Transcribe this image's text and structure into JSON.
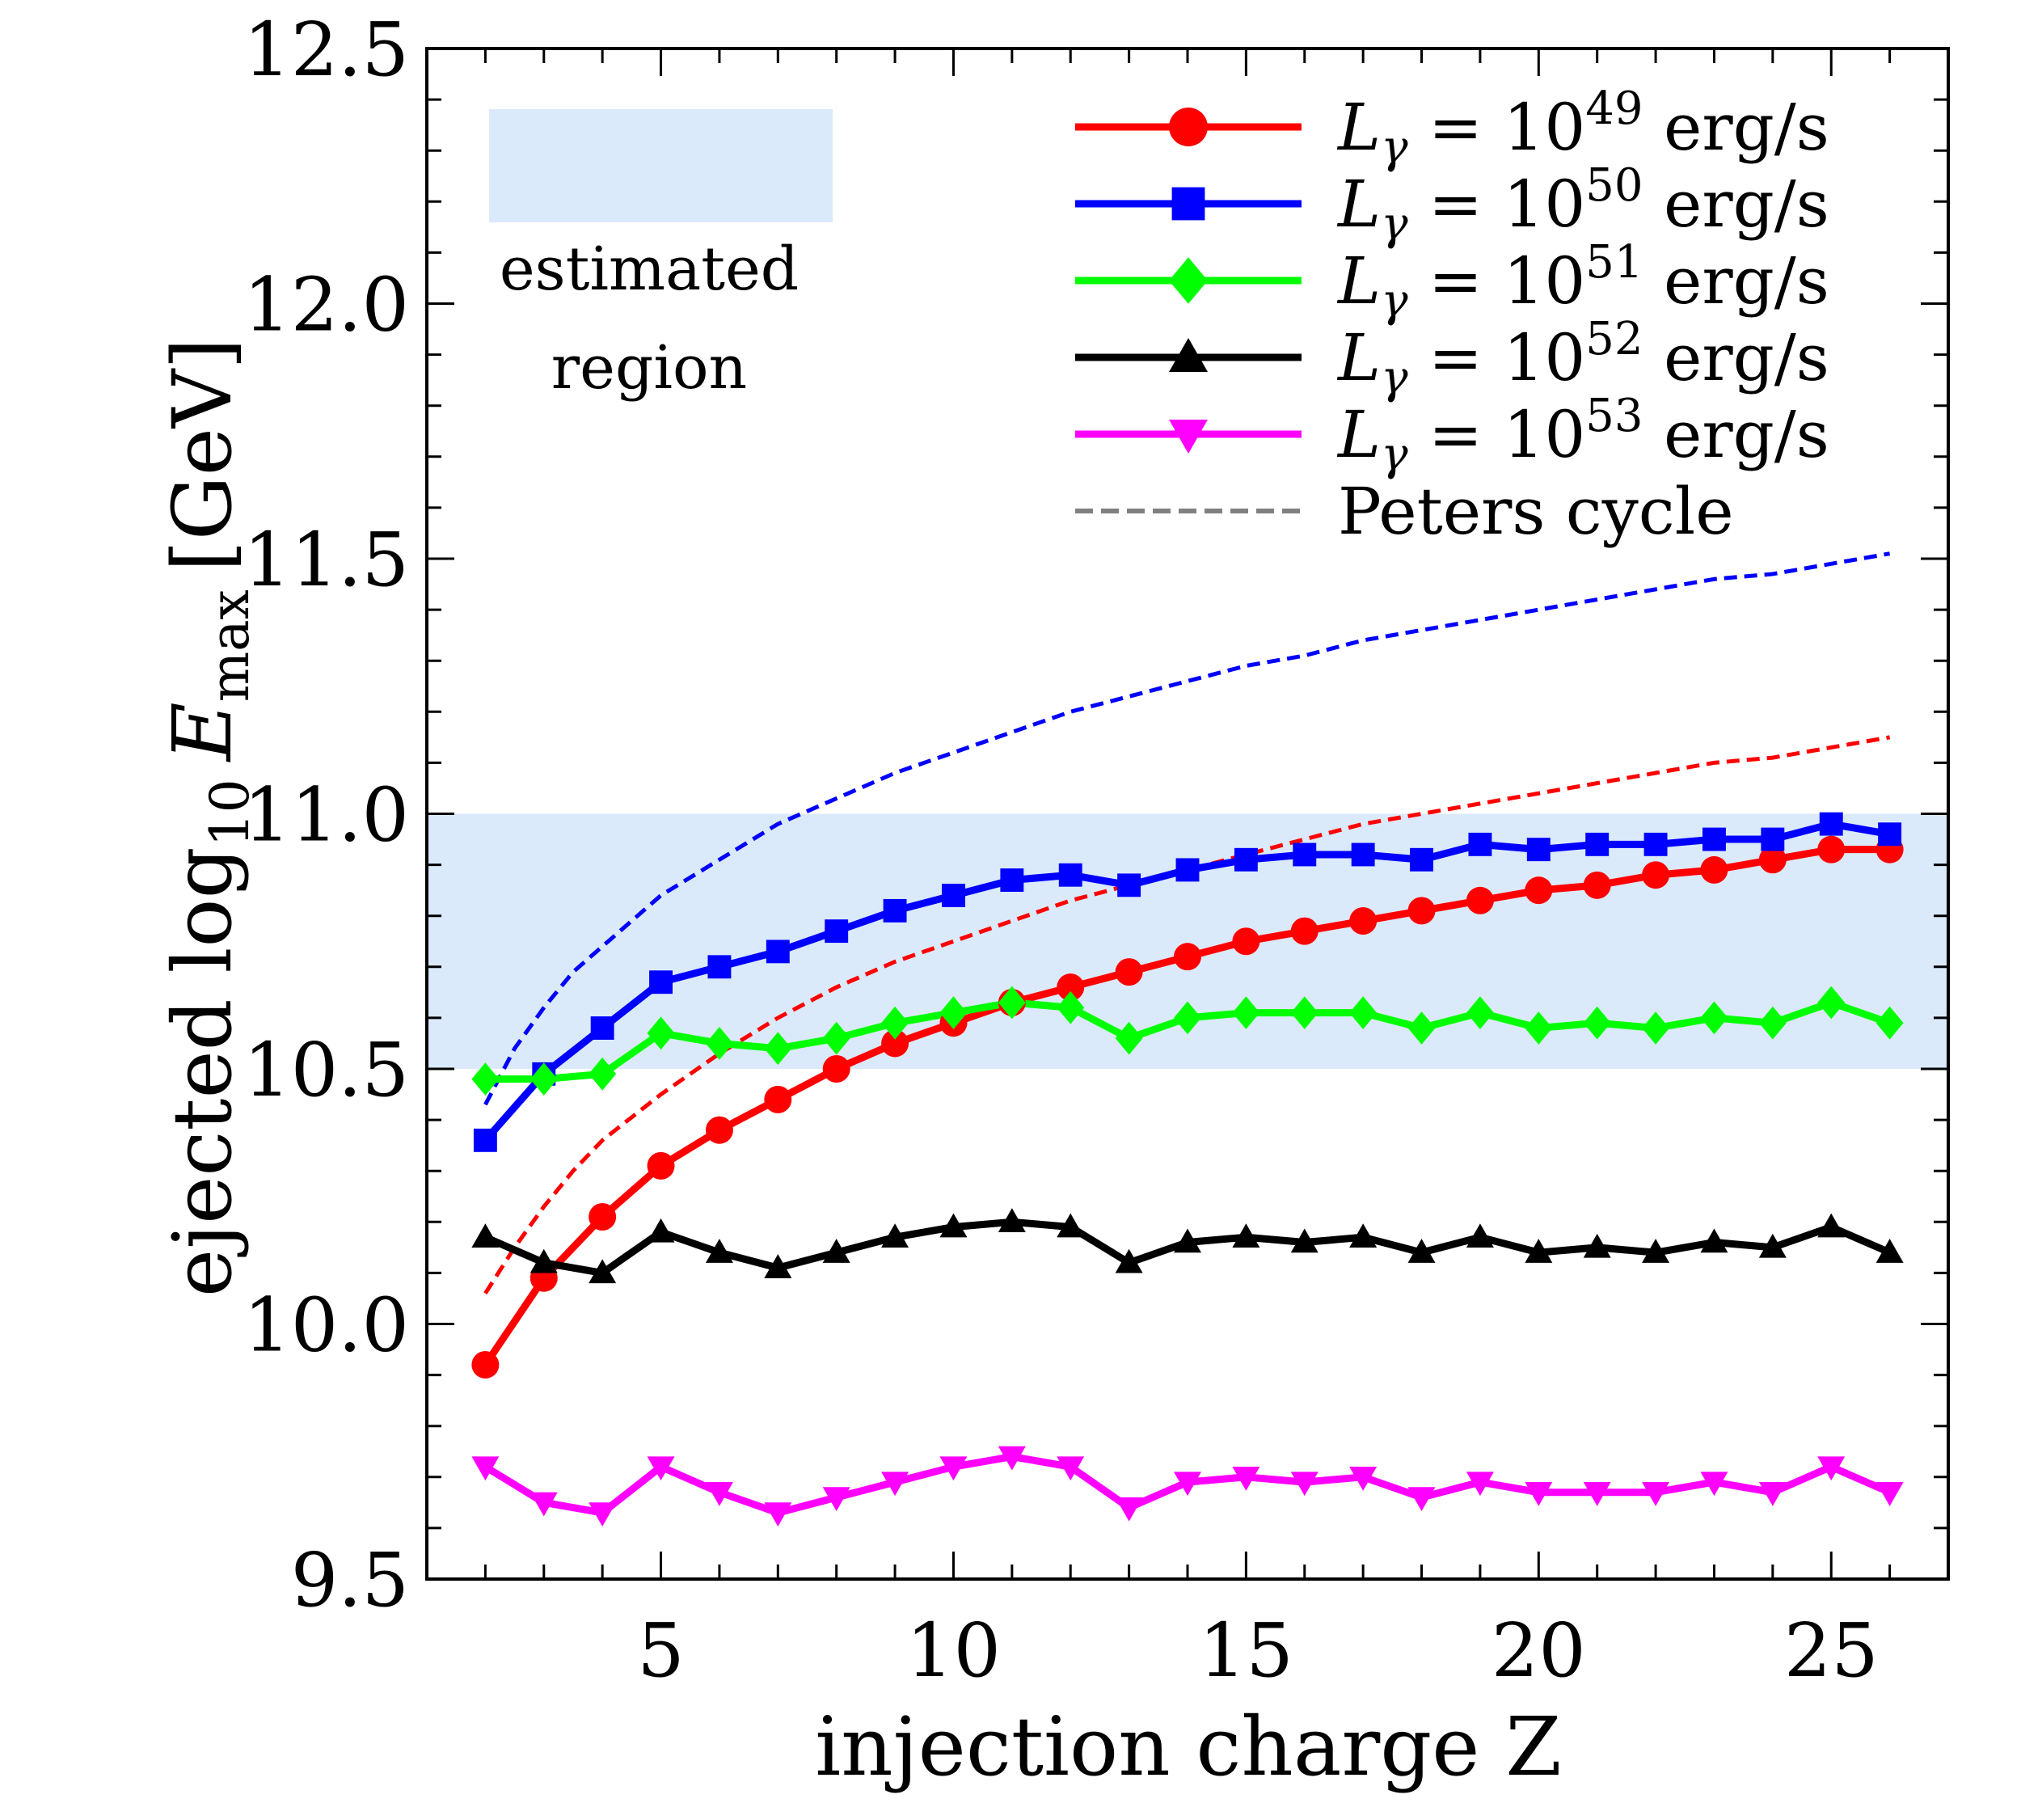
{
  "chart_data": {
    "type": "line",
    "xlabel": "injection charge Z",
    "ylabel_parts": {
      "pre": "ejected log",
      "sub": "10",
      "var": "E",
      "var_sub": "max",
      "unit": "[GeV]"
    },
    "xlim": [
      1,
      27
    ],
    "ylim": [
      9.5,
      12.5
    ],
    "xticks": [
      5,
      10,
      15,
      20,
      25
    ],
    "xtick_labels": [
      "5",
      "10",
      "15",
      "20",
      "25"
    ],
    "yticks": [
      9.5,
      10.0,
      10.5,
      11.0,
      11.5,
      12.0,
      12.5
    ],
    "ytick_labels": [
      "9.5",
      "10.0",
      "10.5",
      "11.0",
      "11.5",
      "12.0",
      "12.5"
    ],
    "shaded_band": {
      "y_from": 10.5,
      "y_to": 11.0,
      "color": "#dbeafb"
    },
    "legend_patch": {
      "label_line1": "estimated",
      "label_line2": "region",
      "color": "#dbeafb"
    },
    "x": [
      2,
      3,
      4,
      5,
      6,
      7,
      8,
      9,
      10,
      11,
      12,
      13,
      14,
      15,
      16,
      17,
      18,
      19,
      20,
      21,
      22,
      23,
      24,
      25,
      26
    ],
    "series": [
      {
        "name": "1e49",
        "label_base": "10",
        "label_exp": "49",
        "marker": "circle",
        "color": "#ff0000",
        "values": [
          9.92,
          10.09,
          10.21,
          10.31,
          10.38,
          10.44,
          10.5,
          10.55,
          10.59,
          10.63,
          10.66,
          10.69,
          10.72,
          10.75,
          10.77,
          10.79,
          10.81,
          10.83,
          10.85,
          10.86,
          10.88,
          10.89,
          10.91,
          10.93,
          10.93
        ]
      },
      {
        "name": "1e50",
        "label_base": "10",
        "label_exp": "50",
        "marker": "square",
        "color": "#0000ff",
        "values": [
          10.36,
          10.49,
          10.58,
          10.67,
          10.7,
          10.73,
          10.77,
          10.81,
          10.84,
          10.87,
          10.88,
          10.86,
          10.89,
          10.91,
          10.92,
          10.92,
          10.91,
          10.94,
          10.93,
          10.94,
          10.94,
          10.95,
          10.95,
          10.98,
          10.96
        ]
      },
      {
        "name": "1e51",
        "label_base": "10",
        "label_exp": "51",
        "marker": "diamond",
        "color": "#00ff00",
        "values": [
          10.48,
          10.48,
          10.49,
          10.57,
          10.55,
          10.54,
          10.56,
          10.59,
          10.61,
          10.63,
          10.62,
          10.56,
          10.6,
          10.61,
          10.61,
          10.61,
          10.58,
          10.61,
          10.58,
          10.59,
          10.58,
          10.6,
          10.59,
          10.63,
          10.59
        ]
      },
      {
        "name": "1e52",
        "label_base": "10",
        "label_exp": "52",
        "marker": "triangle-up",
        "color": "#000000",
        "values": [
          10.17,
          10.12,
          10.1,
          10.18,
          10.14,
          10.11,
          10.14,
          10.17,
          10.19,
          10.2,
          10.19,
          10.12,
          10.16,
          10.17,
          10.16,
          10.17,
          10.14,
          10.17,
          10.14,
          10.15,
          10.14,
          10.16,
          10.15,
          10.19,
          10.14
        ]
      },
      {
        "name": "1e53",
        "label_base": "10",
        "label_exp": "53",
        "marker": "triangle-down",
        "color": "#ff00ff",
        "values": [
          9.72,
          9.65,
          9.63,
          9.72,
          9.67,
          9.63,
          9.66,
          9.69,
          9.72,
          9.74,
          9.72,
          9.64,
          9.69,
          9.7,
          9.69,
          9.7,
          9.66,
          9.69,
          9.67,
          9.67,
          9.67,
          9.69,
          9.67,
          9.72,
          9.67
        ]
      }
    ],
    "peters_cycle": {
      "label": "Peters cycle",
      "legend_color": "#808080",
      "curves": [
        {
          "color": "#ff0000",
          "x": [
            2,
            2.5,
            3,
            3.5,
            4,
            5,
            6,
            7,
            8,
            9,
            10,
            11,
            12,
            13,
            14,
            15,
            16,
            17,
            18,
            19,
            20,
            21,
            22,
            23,
            24,
            25,
            26
          ],
          "values": [
            10.06,
            10.15,
            10.23,
            10.3,
            10.36,
            10.45,
            10.53,
            10.6,
            10.66,
            10.71,
            10.75,
            10.79,
            10.83,
            10.86,
            10.89,
            10.92,
            10.95,
            10.98,
            11.0,
            11.02,
            11.04,
            11.06,
            11.08,
            11.1,
            11.11,
            11.13,
            11.15
          ]
        },
        {
          "color": "#0000ff",
          "x": [
            2,
            2.5,
            3,
            3.5,
            4,
            5,
            6,
            7,
            8,
            9,
            10,
            11,
            12,
            13,
            14,
            15,
            16,
            17,
            18,
            19,
            20,
            21,
            22,
            23,
            24,
            25,
            26
          ],
          "values": [
            10.43,
            10.54,
            10.62,
            10.69,
            10.74,
            10.84,
            10.91,
            10.98,
            11.03,
            11.08,
            11.12,
            11.16,
            11.2,
            11.23,
            11.26,
            11.29,
            11.31,
            11.34,
            11.36,
            11.38,
            11.4,
            11.42,
            11.44,
            11.46,
            11.47,
            11.49,
            11.51
          ]
        }
      ]
    },
    "legend_prefix": "L",
    "legend_prefix_sub": "γ",
    "legend_unit": "erg/s"
  }
}
